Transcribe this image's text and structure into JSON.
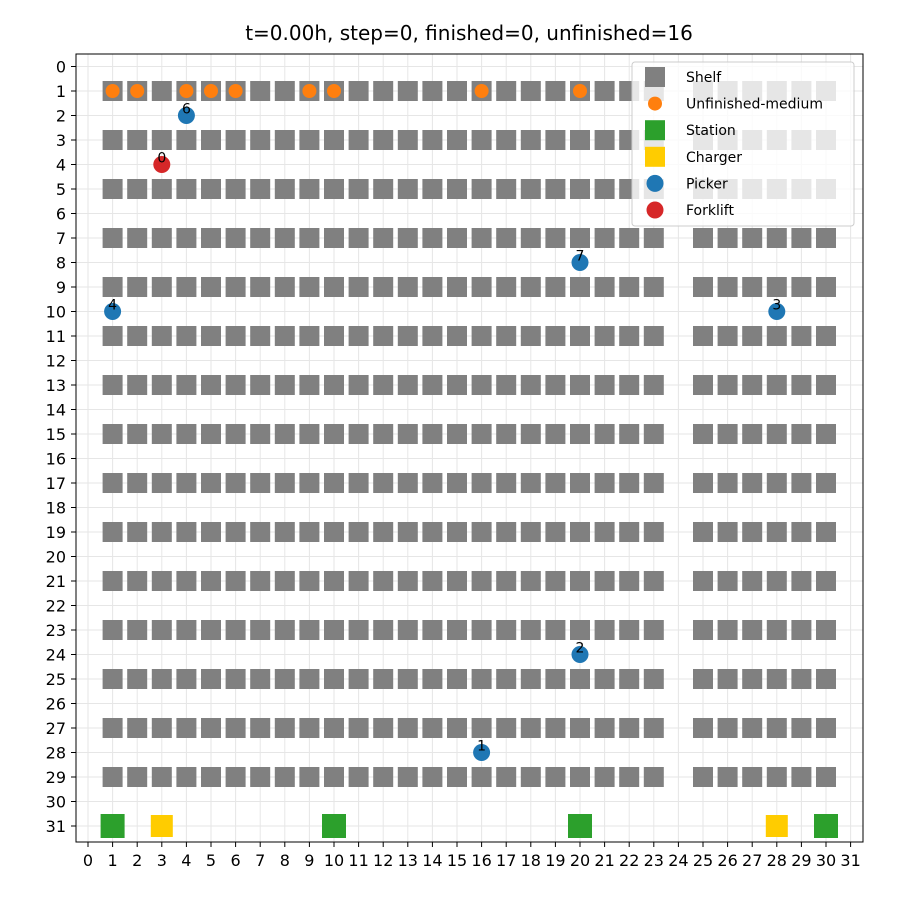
{
  "chart_data": {
    "type": "scatter",
    "title": "t=0.00h, step=0, finished=0, unfinished=16",
    "xlim": [
      0,
      31
    ],
    "ylim": [
      0,
      31
    ],
    "y_inverted": true,
    "grid": true,
    "x_ticks": [
      "0",
      "1",
      "2",
      "3",
      "4",
      "5",
      "6",
      "7",
      "8",
      "9",
      "10",
      "11",
      "12",
      "13",
      "14",
      "15",
      "16",
      "17",
      "18",
      "19",
      "20",
      "21",
      "22",
      "23",
      "24",
      "25",
      "26",
      "27",
      "28",
      "29",
      "30",
      "31"
    ],
    "y_ticks": [
      "0",
      "1",
      "2",
      "3",
      "4",
      "5",
      "6",
      "7",
      "8",
      "9",
      "10",
      "11",
      "12",
      "13",
      "14",
      "15",
      "16",
      "17",
      "18",
      "19",
      "20",
      "21",
      "22",
      "23",
      "24",
      "25",
      "26",
      "27",
      "28",
      "29",
      "30",
      "31"
    ],
    "shelf_rows": [
      1,
      3,
      5,
      7,
      9,
      11,
      13,
      15,
      17,
      19,
      21,
      23,
      25,
      27,
      29
    ],
    "shelf_columns": [
      1,
      2,
      3,
      4,
      5,
      6,
      7,
      8,
      9,
      10,
      11,
      12,
      13,
      14,
      15,
      16,
      17,
      18,
      19,
      20,
      21,
      22,
      23,
      25,
      26,
      27,
      28,
      29,
      30
    ],
    "legend": {
      "position": "top-right",
      "items": [
        {
          "label": "Shelf",
          "marker": "square",
          "color": "#808080"
        },
        {
          "label": "Unfinished-medium",
          "marker": "circle",
          "color": "#ff7f0e"
        },
        {
          "label": "Station",
          "marker": "square",
          "color": "#2ca02c"
        },
        {
          "label": "Charger",
          "marker": "square",
          "color": "#ffcc00"
        },
        {
          "label": "Picker",
          "marker": "circle",
          "color": "#1f77b4"
        },
        {
          "label": "Forklift",
          "marker": "circle",
          "color": "#d62728"
        }
      ]
    },
    "unfinished_medium": [
      [
        1,
        1
      ],
      [
        2,
        1
      ],
      [
        4,
        1
      ],
      [
        5,
        1
      ],
      [
        6,
        1
      ],
      [
        9,
        1
      ],
      [
        10,
        1
      ],
      [
        16,
        1
      ],
      [
        20,
        1
      ]
    ],
    "stations": [
      [
        1,
        31
      ],
      [
        10,
        31
      ],
      [
        20,
        31
      ],
      [
        30,
        31
      ]
    ],
    "chargers": [
      [
        3,
        31
      ],
      [
        28,
        31
      ]
    ],
    "pickers": [
      {
        "id": "6",
        "x": 4,
        "y": 2
      },
      {
        "id": "7",
        "x": 20,
        "y": 8
      },
      {
        "id": "4",
        "x": 1,
        "y": 10
      },
      {
        "id": "3",
        "x": 28,
        "y": 10
      },
      {
        "id": "2",
        "x": 20,
        "y": 24
      },
      {
        "id": "1",
        "x": 16,
        "y": 28
      }
    ],
    "forklifts": [
      {
        "id": "0",
        "x": 3,
        "y": 4
      }
    ]
  }
}
